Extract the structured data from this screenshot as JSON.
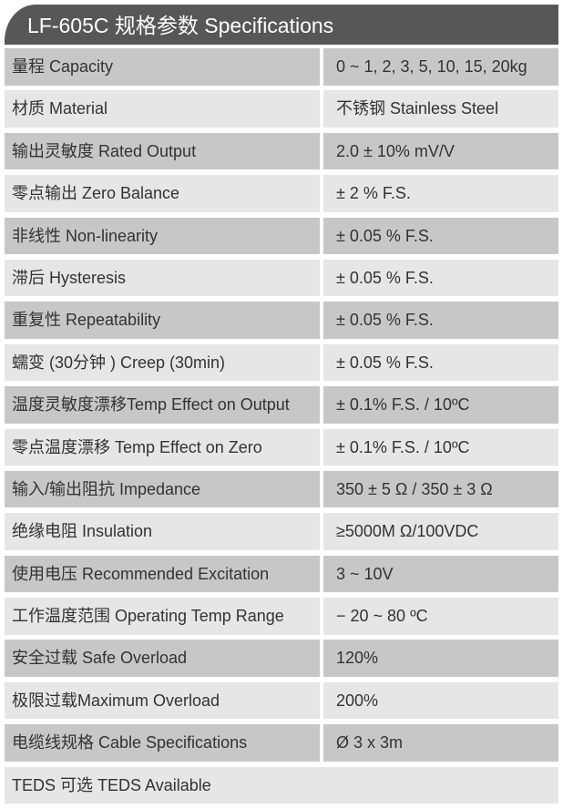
{
  "header": {
    "title": "LF-605C 规格参数 Specifications"
  },
  "rows": [
    {
      "label": "量程 Capacity",
      "value": "0 ~ 1, 2, 3, 5, 10, 15, 20kg"
    },
    {
      "label": "材质 Material",
      "value": "不锈钢 Stainless Steel"
    },
    {
      "label": "输出灵敏度 Rated Output",
      "value": "2.0 ± 10% mV/V"
    },
    {
      "label": "零点输出  Zero Balance",
      "value": "± 2 % F.S."
    },
    {
      "label": "非线性 Non-linearity",
      "value": "± 0.05 % F.S."
    },
    {
      "label": "滞后 Hysteresis",
      "value": "± 0.05 % F.S."
    },
    {
      "label": "重复性 Repeatability",
      "value": "± 0.05 % F.S."
    },
    {
      "label": "蠕变 (30分钟 ) Creep (30min)",
      "value": "± 0.05 % F.S."
    },
    {
      "label": "温度灵敏度漂移Temp Effect on Output",
      "value": "± 0.1% F.S. / 10ºC"
    },
    {
      "label": "零点温度漂移 Temp Effect on Zero",
      "value": "± 0.1% F.S. / 10ºC"
    },
    {
      "label": "输入/输出阻抗 Impedance",
      "value": "350 ± 5 Ω  / 350 ± 3 Ω"
    },
    {
      "label": "绝缘电阻  Insulation",
      "value": "≥5000M Ω/100VDC"
    },
    {
      "label": "使用电压 Recommended Excitation",
      "value": "3 ~ 10V"
    },
    {
      "label": "工作温度范围 Operating Temp  Range",
      "value": "− 20 ~ 80 ºC"
    },
    {
      "label": "安全过载 Safe Overload",
      "value": "120%"
    },
    {
      "label": "极限过载Maximum Overload",
      "value": "200%"
    },
    {
      "label": "电缆线规格 Cable Specifications",
      "value": "Ø 3 x 3m"
    },
    {
      "label": "TEDS 可选 TEDS Available"
    }
  ]
}
